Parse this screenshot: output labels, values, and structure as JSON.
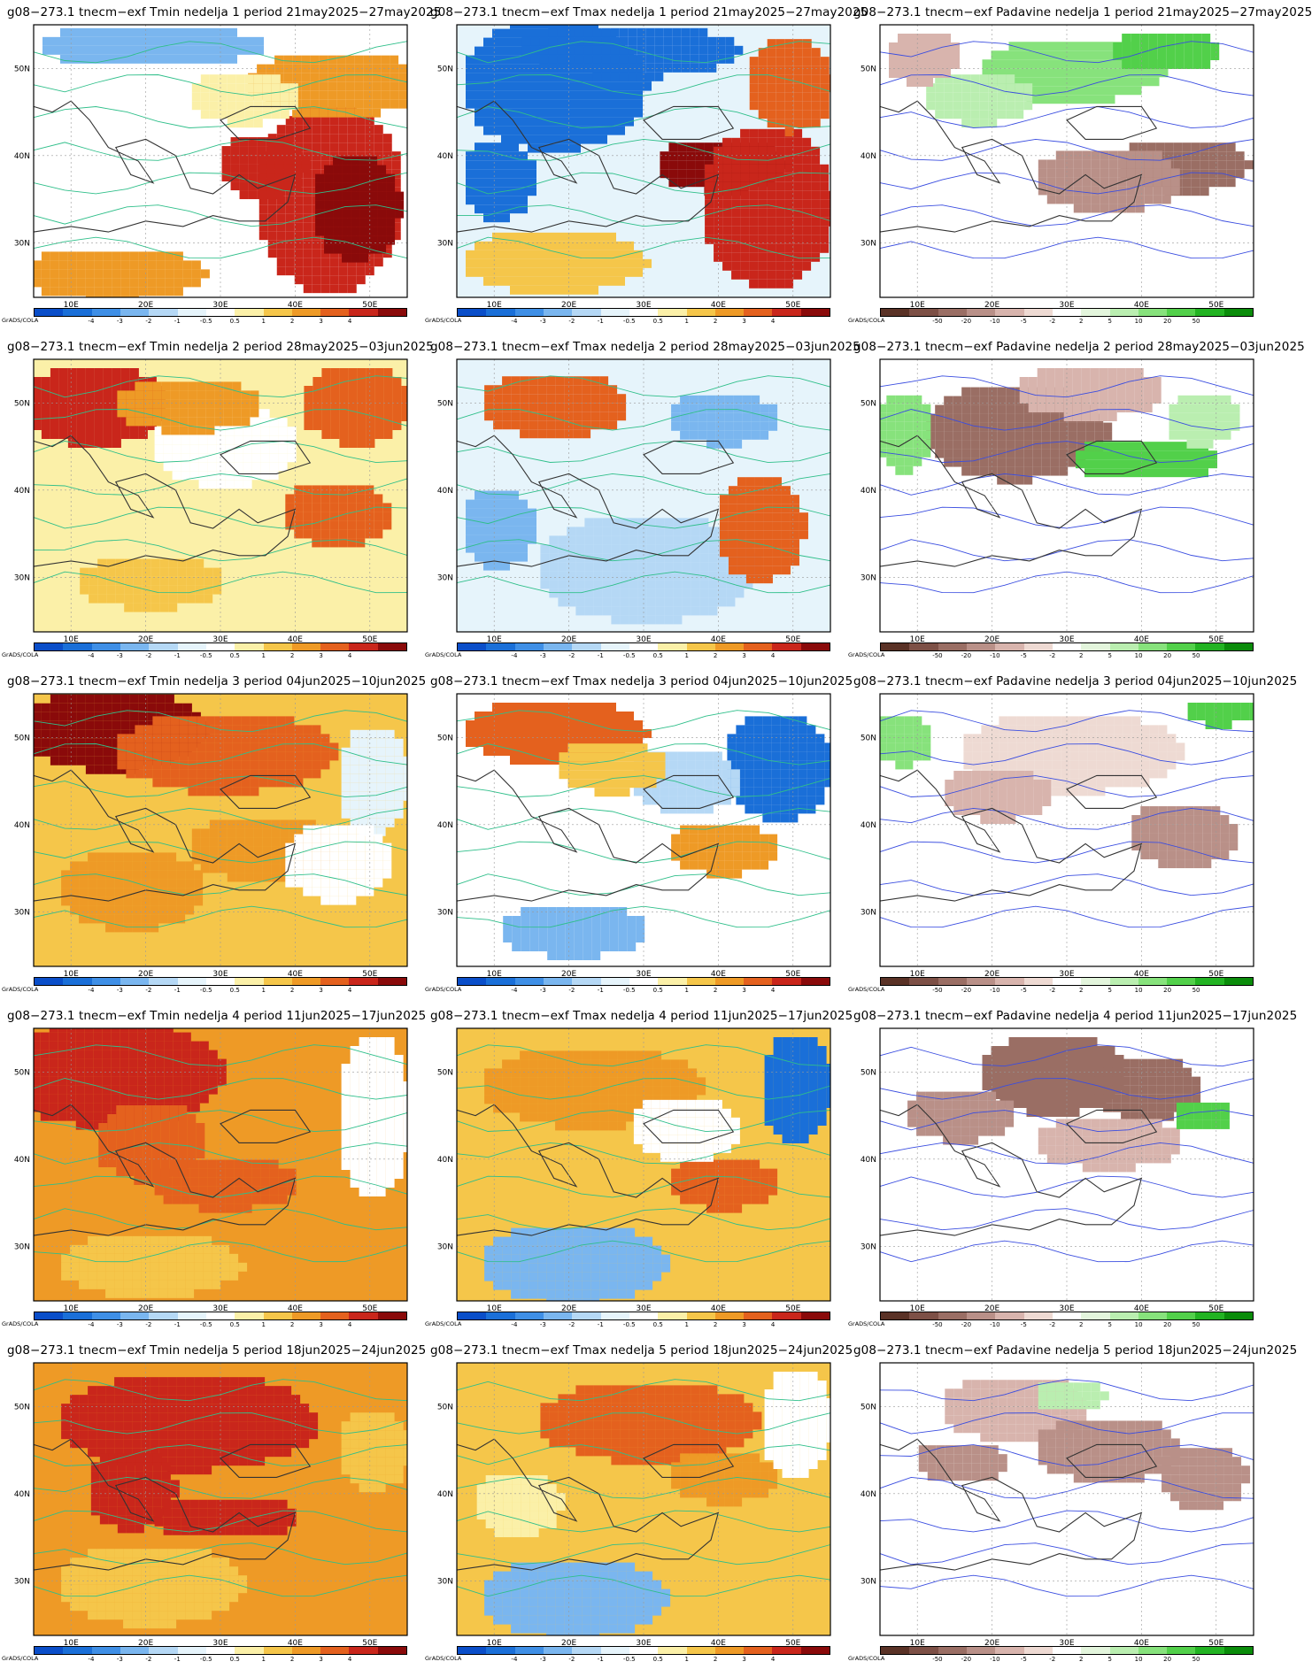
{
  "credit": "GrADS/COLA",
  "axes": {
    "lon_ticks": [
      "10E",
      "20E",
      "30E",
      "40E",
      "50E"
    ],
    "lat_ticks": [
      "50N",
      "40N",
      "30N"
    ]
  },
  "scales": {
    "temp": {
      "labels": [
        "-4",
        "-3",
        "-2",
        "-1",
        "-0.5",
        "0.5",
        "1",
        "2",
        "3",
        "4"
      ],
      "colors": [
        "#0a4ec9",
        "#1a6fd8",
        "#3f8fe6",
        "#7ab6ef",
        "#b5d8f5",
        "#e6f4fb",
        "#ffffff",
        "#fbf0a8",
        "#f5c64a",
        "#ee9a26",
        "#e4611e",
        "#c9261b",
        "#8a0a0a"
      ]
    },
    "precip": {
      "labels": [
        "-50",
        "-20",
        "-10",
        "-5",
        "-2",
        "2",
        "5",
        "10",
        "20",
        "50"
      ],
      "colors": [
        "#5a3226",
        "#7d5046",
        "#9a6e64",
        "#b99088",
        "#d8b4ad",
        "#eedad3",
        "#ffffff",
        "#e3f5dc",
        "#baeeb0",
        "#87e27c",
        "#52d04a",
        "#22b322",
        "#0a8c0a"
      ]
    }
  },
  "rows": [
    {
      "week": "1",
      "period": "21may2025–27may2025",
      "titles": [
        "g08−273.1 tnecm−exf Tmin nedelja 1 period 21may2025−27may2025",
        "g08−273.1 tnecm−exf Tmax nedelja 1 period 21may2025−27may2025",
        "g08−273.1 tnecm−exf Padavine nedelja 1 period 21may2025−27may2025"
      ]
    },
    {
      "week": "2",
      "period": "28may2025–03jun2025",
      "titles": [
        "g08−273.1 tnecm−exf Tmin nedelja 2 period 28may2025−03jun2025",
        "g08−273.1 tnecm−exf Tmax nedelja 2 period 28may2025−03jun2025",
        "g08−273.1 tnecm−exf Padavine nedelja 2 period 28may2025−03jun2025"
      ]
    },
    {
      "week": "3",
      "period": "04jun2025–10jun2025",
      "titles": [
        "g08−273.1 tnecm−exf Tmin nedelja 3 period 04jun2025−10jun2025",
        "g08−273.1 tnecm−exf Tmax nedelja 3 period 04jun2025−10jun2025",
        "g08−273.1 tnecm−exf Padavine nedelja 3 period 04jun2025−10jun2025"
      ]
    },
    {
      "week": "4",
      "period": "11jun2025–17jun2025",
      "titles": [
        "g08−273.1 tnecm−exf Tmin nedelja 4 period 11jun2025−17jun2025",
        "g08−273.1 tnecm−exf Tmax nedelja 4 period 11jun2025−17jun2025",
        "g08−273.1 tnecm−exf Padavine nedelja 4 period 11jun2025−17jun2025"
      ]
    },
    {
      "week": "5",
      "period": "18jun2025–24jun2025",
      "titles": [
        "g08−273.1 tnecm−exf Tmin nedelja 5 period 18jun2025−24jun2025",
        "g08−273.1 tnecm−exf Tmax nedelja 5 period 18jun2025−24jun2025",
        "g08−273.1 tnecm−exf Padavine nedelja 5 period 18jun2025−24jun2025"
      ]
    }
  ],
  "fields": [
    [
      {
        "var": "Tmin",
        "bg": "#ffffff",
        "blobs": [
          [
            0.78,
            0.62,
            0.2,
            0.35,
            "#c9261b"
          ],
          [
            0.85,
            0.65,
            0.12,
            0.2,
            "#8a0a0a"
          ],
          [
            0.6,
            0.5,
            0.12,
            0.12,
            "#c9261b"
          ],
          [
            0.8,
            0.2,
            0.25,
            0.12,
            "#ee9a26"
          ],
          [
            0.2,
            0.9,
            0.25,
            0.1,
            "#ee9a26"
          ],
          [
            0.3,
            0.06,
            0.3,
            0.08,
            "#7ab6ef"
          ],
          [
            0.55,
            0.25,
            0.15,
            0.1,
            "#fbf0a8"
          ]
        ]
      },
      {
        "var": "Tmax",
        "bg": "#e6f4fb",
        "blobs": [
          [
            0.25,
            0.2,
            0.25,
            0.25,
            "#1a6fd8"
          ],
          [
            0.45,
            0.08,
            0.3,
            0.1,
            "#1a6fd8"
          ],
          [
            0.7,
            0.5,
            0.18,
            0.1,
            "#8a0a0a"
          ],
          [
            0.82,
            0.65,
            0.18,
            0.3,
            "#c9261b"
          ],
          [
            0.88,
            0.2,
            0.12,
            0.18,
            "#e4611e"
          ],
          [
            0.1,
            0.55,
            0.1,
            0.15,
            "#1a6fd8"
          ],
          [
            0.25,
            0.85,
            0.25,
            0.12,
            "#f5c64a"
          ]
        ]
      },
      {
        "var": "Padavine",
        "bg": "#ffffff",
        "blobs": [
          [
            0.5,
            0.15,
            0.25,
            0.12,
            "#87e27c"
          ],
          [
            0.75,
            0.08,
            0.15,
            0.08,
            "#52d04a"
          ],
          [
            0.25,
            0.25,
            0.15,
            0.1,
            "#baeeb0"
          ],
          [
            0.8,
            0.5,
            0.18,
            0.1,
            "#9a6e64"
          ],
          [
            0.6,
            0.55,
            0.2,
            0.12,
            "#b99088"
          ],
          [
            0.1,
            0.1,
            0.1,
            0.1,
            "#d8b4ad"
          ]
        ]
      }
    ],
    [
      {
        "var": "Tmin",
        "bg": "#fbf0a8",
        "blobs": [
          [
            0.15,
            0.15,
            0.2,
            0.15,
            "#c9261b"
          ],
          [
            0.85,
            0.15,
            0.15,
            0.15,
            "#e4611e"
          ],
          [
            0.5,
            0.3,
            0.2,
            0.15,
            "#ffffff"
          ],
          [
            0.8,
            0.55,
            0.15,
            0.12,
            "#e4611e"
          ],
          [
            0.4,
            0.15,
            0.2,
            0.1,
            "#ee9a26"
          ],
          [
            0.3,
            0.8,
            0.2,
            0.1,
            "#f5c64a"
          ]
        ]
      },
      {
        "var": "Tmax",
        "bg": "#e6f4fb",
        "blobs": [
          [
            0.25,
            0.15,
            0.2,
            0.12,
            "#e4611e"
          ],
          [
            0.5,
            0.75,
            0.3,
            0.2,
            "#b5d8f5"
          ],
          [
            0.8,
            0.6,
            0.12,
            0.2,
            "#e4611e"
          ],
          [
            0.7,
            0.2,
            0.15,
            0.1,
            "#7ab6ef"
          ],
          [
            0.1,
            0.6,
            0.1,
            0.15,
            "#7ab6ef"
          ]
        ]
      },
      {
        "var": "Padavine",
        "bg": "#ffffff",
        "blobs": [
          [
            0.35,
            0.25,
            0.25,
            0.18,
            "#9a6e64"
          ],
          [
            0.05,
            0.25,
            0.08,
            0.15,
            "#87e27c"
          ],
          [
            0.7,
            0.35,
            0.2,
            0.08,
            "#52d04a"
          ],
          [
            0.55,
            0.1,
            0.2,
            0.1,
            "#d8b4ad"
          ],
          [
            0.85,
            0.2,
            0.1,
            0.1,
            "#baeeb0"
          ]
        ]
      }
    ],
    [
      {
        "var": "Tmin",
        "bg": "#f5c64a",
        "blobs": [
          [
            0.2,
            0.12,
            0.25,
            0.15,
            "#8a0a0a"
          ],
          [
            0.5,
            0.2,
            0.3,
            0.15,
            "#e4611e"
          ],
          [
            0.9,
            0.3,
            0.1,
            0.2,
            "#e6f4fb"
          ],
          [
            0.6,
            0.55,
            0.2,
            0.12,
            "#ee9a26"
          ],
          [
            0.25,
            0.7,
            0.2,
            0.15,
            "#ee9a26"
          ],
          [
            0.8,
            0.6,
            0.15,
            0.15,
            "#ffffff"
          ]
        ]
      },
      {
        "var": "Tmax",
        "bg": "#ffffff",
        "blobs": [
          [
            0.25,
            0.12,
            0.25,
            0.12,
            "#e4611e"
          ],
          [
            0.85,
            0.25,
            0.15,
            0.2,
            "#1a6fd8"
          ],
          [
            0.7,
            0.55,
            0.15,
            0.1,
            "#ee9a26"
          ],
          [
            0.3,
            0.85,
            0.2,
            0.1,
            "#7ab6ef"
          ],
          [
            0.6,
            0.3,
            0.15,
            0.12,
            "#b5d8f5"
          ],
          [
            0.4,
            0.25,
            0.15,
            0.1,
            "#f5c64a"
          ]
        ]
      },
      {
        "var": "Padavine",
        "bg": "#ffffff",
        "blobs": [
          [
            0.5,
            0.2,
            0.3,
            0.15,
            "#eedad3"
          ],
          [
            0.8,
            0.5,
            0.15,
            0.12,
            "#b99088"
          ],
          [
            0.3,
            0.35,
            0.15,
            0.1,
            "#d8b4ad"
          ],
          [
            0.05,
            0.15,
            0.08,
            0.1,
            "#87e27c"
          ],
          [
            0.9,
            0.05,
            0.1,
            0.05,
            "#52d04a"
          ]
        ]
      }
    ],
    [
      {
        "var": "Tmin",
        "bg": "#ee9a26",
        "blobs": [
          [
            0.2,
            0.15,
            0.3,
            0.2,
            "#c9261b"
          ],
          [
            0.5,
            0.55,
            0.2,
            0.1,
            "#e4611e"
          ],
          [
            0.3,
            0.4,
            0.15,
            0.15,
            "#e4611e"
          ],
          [
            0.9,
            0.3,
            0.1,
            0.3,
            "#ffffff"
          ],
          [
            0.3,
            0.85,
            0.25,
            0.12,
            "#f5c64a"
          ]
        ]
      },
      {
        "var": "Tmax",
        "bg": "#f5c64a",
        "blobs": [
          [
            0.35,
            0.2,
            0.3,
            0.15,
            "#ee9a26"
          ],
          [
            0.9,
            0.2,
            0.1,
            0.2,
            "#1a6fd8"
          ],
          [
            0.3,
            0.85,
            0.25,
            0.15,
            "#7ab6ef"
          ],
          [
            0.7,
            0.55,
            0.15,
            0.1,
            "#e4611e"
          ],
          [
            0.6,
            0.35,
            0.15,
            0.12,
            "#ffffff"
          ]
        ]
      },
      {
        "var": "Padavine",
        "bg": "#ffffff",
        "blobs": [
          [
            0.45,
            0.15,
            0.2,
            0.15,
            "#9a6e64"
          ],
          [
            0.7,
            0.2,
            0.15,
            0.12,
            "#9a6e64"
          ],
          [
            0.2,
            0.3,
            0.15,
            0.1,
            "#b99088"
          ],
          [
            0.6,
            0.4,
            0.2,
            0.1,
            "#d8b4ad"
          ],
          [
            0.85,
            0.3,
            0.08,
            0.06,
            "#52d04a"
          ]
        ]
      }
    ],
    [
      {
        "var": "Tmin",
        "bg": "#ee9a26",
        "blobs": [
          [
            0.4,
            0.2,
            0.35,
            0.18,
            "#c9261b"
          ],
          [
            0.25,
            0.45,
            0.12,
            0.15,
            "#c9261b"
          ],
          [
            0.5,
            0.55,
            0.2,
            0.08,
            "#c9261b"
          ],
          [
            0.9,
            0.3,
            0.1,
            0.15,
            "#f5c64a"
          ],
          [
            0.3,
            0.8,
            0.25,
            0.15,
            "#f5c64a"
          ]
        ]
      },
      {
        "var": "Tmax",
        "bg": "#f5c64a",
        "blobs": [
          [
            0.5,
            0.2,
            0.3,
            0.15,
            "#e4611e"
          ],
          [
            0.3,
            0.85,
            0.25,
            0.15,
            "#7ab6ef"
          ],
          [
            0.7,
            0.4,
            0.15,
            0.1,
            "#ee9a26"
          ],
          [
            0.9,
            0.2,
            0.1,
            0.2,
            "#ffffff"
          ],
          [
            0.15,
            0.5,
            0.12,
            0.12,
            "#fbf0a8"
          ]
        ]
      },
      {
        "var": "Padavine",
        "bg": "#ffffff",
        "blobs": [
          [
            0.35,
            0.15,
            0.2,
            0.12,
            "#d8b4ad"
          ],
          [
            0.6,
            0.3,
            0.2,
            0.12,
            "#b99088"
          ],
          [
            0.85,
            0.4,
            0.12,
            0.12,
            "#b99088"
          ],
          [
            0.5,
            0.1,
            0.1,
            0.06,
            "#baeeb0"
          ],
          [
            0.2,
            0.35,
            0.12,
            0.08,
            "#b99088"
          ]
        ]
      }
    ]
  ]
}
